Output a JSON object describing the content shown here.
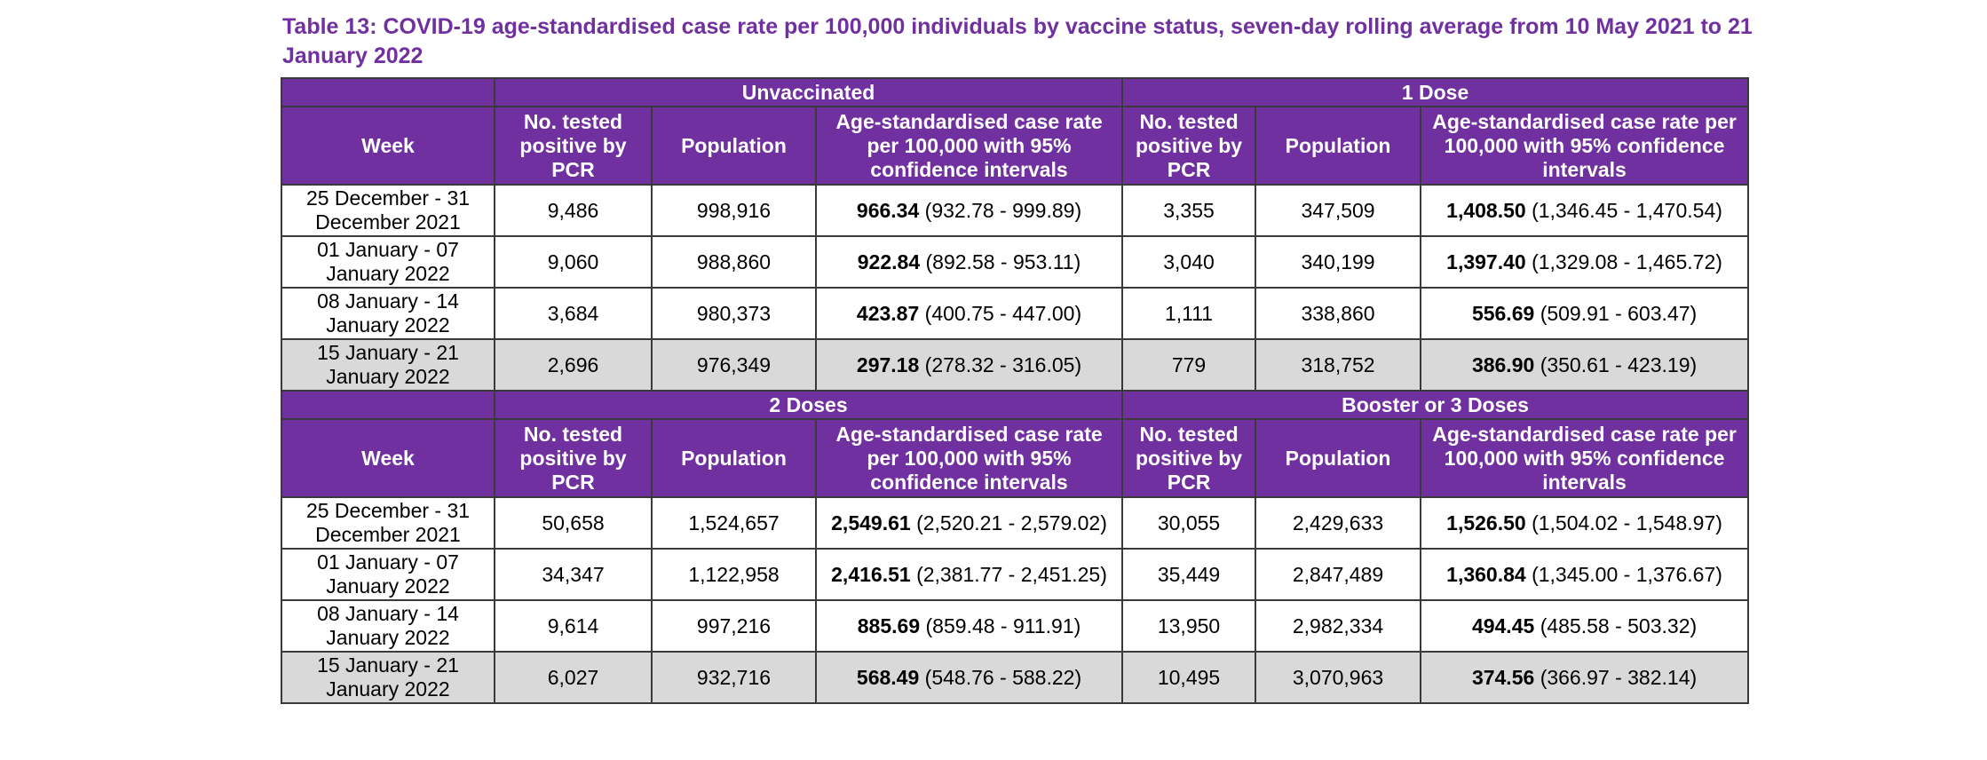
{
  "title": "Table 13: COVID-19 age-standardised case rate per 100,000 individuals by vaccine status, seven-day rolling average from 10 May 2021 to 21 January 2022",
  "columns": {
    "week": "Week",
    "tested": "No. tested positive by PCR",
    "tested_narrow": "No. tested positive by PCR",
    "population": "Population",
    "rate": "Age-standardised case rate per 100,000 with 95% confidence intervals"
  },
  "sections": [
    {
      "groups": [
        "Unvaccinated",
        "1 Dose"
      ],
      "rows": [
        {
          "week": "25 December - 31 December 2021",
          "a_tested": "9,486",
          "a_pop": "998,916",
          "a_rate": "966.34",
          "a_ci": "(932.78 - 999.89)",
          "b_tested": "3,355",
          "b_pop": "347,509",
          "b_rate": "1,408.50",
          "b_ci": "(1,346.45 - 1,470.54)"
        },
        {
          "week": "01 January - 07 January 2022",
          "a_tested": "9,060",
          "a_pop": "988,860",
          "a_rate": "922.84",
          "a_ci": "(892.58 - 953.11)",
          "b_tested": "3,040",
          "b_pop": "340,199",
          "b_rate": "1,397.40",
          "b_ci": "(1,329.08 - 1,465.72)"
        },
        {
          "week": "08 January - 14 January 2022",
          "a_tested": "3,684",
          "a_pop": "980,373",
          "a_rate": "423.87",
          "a_ci": "(400.75 - 447.00)",
          "b_tested": "1,111",
          "b_pop": "338,860",
          "b_rate": "556.69",
          "b_ci": "(509.91 - 603.47)"
        },
        {
          "week": "15 January - 21 January 2022",
          "a_tested": "2,696",
          "a_pop": "976,349",
          "a_rate": "297.18",
          "a_ci": "(278.32 - 316.05)",
          "b_tested": "779",
          "b_pop": "318,752",
          "b_rate": "386.90",
          "b_ci": "(350.61 - 423.19)"
        }
      ]
    },
    {
      "groups": [
        "2 Doses",
        "Booster or 3 Doses"
      ],
      "rows": [
        {
          "week": "25 December - 31 December 2021",
          "a_tested": "50,658",
          "a_pop": "1,524,657",
          "a_rate": "2,549.61",
          "a_ci": "(2,520.21 - 2,579.02)",
          "b_tested": "30,055",
          "b_pop": "2,429,633",
          "b_rate": "1,526.50",
          "b_ci": "(1,504.02 - 1,548.97)"
        },
        {
          "week": "01 January - 07 January 2022",
          "a_tested": "34,347",
          "a_pop": "1,122,958",
          "a_rate": "2,416.51",
          "a_ci": "(2,381.77 - 2,451.25)",
          "b_tested": "35,449",
          "b_pop": "2,847,489",
          "b_rate": "1,360.84",
          "b_ci": "(1,345.00 - 1,376.67)"
        },
        {
          "week": "08 January - 14 January 2022",
          "a_tested": "9,614",
          "a_pop": "997,216",
          "a_rate": "885.69",
          "a_ci": "(859.48 - 911.91)",
          "b_tested": "13,950",
          "b_pop": "2,982,334",
          "b_rate": "494.45",
          "b_ci": "(485.58 - 503.32)"
        },
        {
          "week": "15 January - 21 January 2022",
          "a_tested": "6,027",
          "a_pop": "932,716",
          "a_rate": "568.49",
          "a_ci": "(548.76 - 588.22)",
          "b_tested": "10,495",
          "b_pop": "3,070,963",
          "b_rate": "374.56",
          "b_ci": "(366.97 - 382.14)"
        }
      ]
    }
  ]
}
